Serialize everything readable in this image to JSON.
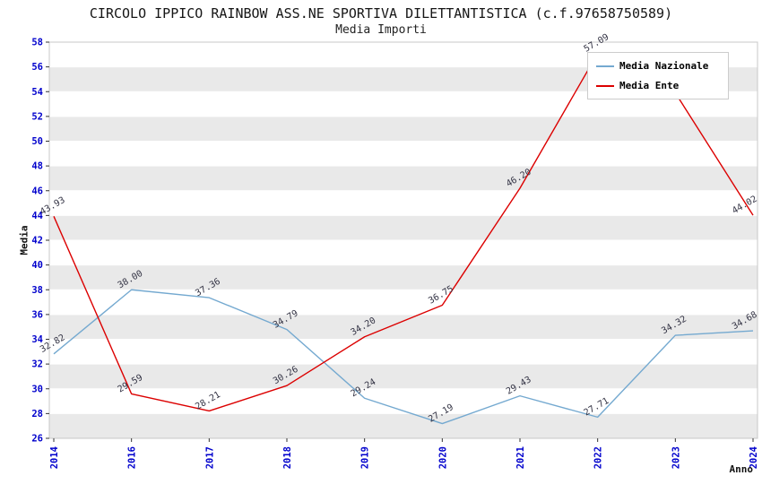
{
  "chart_data": {
    "type": "line",
    "title": "CIRCOLO IPPICO RAINBOW ASS.NE SPORTIVA DILETTANTISTICA (c.f.97658750589)",
    "subtitle": "Media Importi",
    "xlabel": "Anno",
    "ylabel": "Media",
    "ylim": [
      26,
      58
    ],
    "ytick_step": 2,
    "grid": true,
    "legend_position": "top-right",
    "categories": [
      "2014",
      "2016",
      "2017",
      "2018",
      "2019",
      "2020",
      "2021",
      "2022",
      "2023",
      "2024"
    ],
    "series": [
      {
        "name": "Media Nazionale",
        "color": "#74a9d0",
        "values": [
          32.82,
          38.0,
          37.36,
          34.79,
          29.24,
          27.19,
          29.43,
          27.71,
          34.32,
          34.68
        ]
      },
      {
        "name": "Media Ente",
        "color": "#dc0000",
        "values": [
          43.93,
          29.59,
          28.21,
          30.26,
          34.2,
          36.75,
          46.2,
          57.09,
          53.9,
          44.02
        ]
      }
    ],
    "colors": {
      "band": "#e9e9e9",
      "tick_label": "#0000cc",
      "data_label": "#333344",
      "plot_border": "#c8c8c8"
    }
  }
}
